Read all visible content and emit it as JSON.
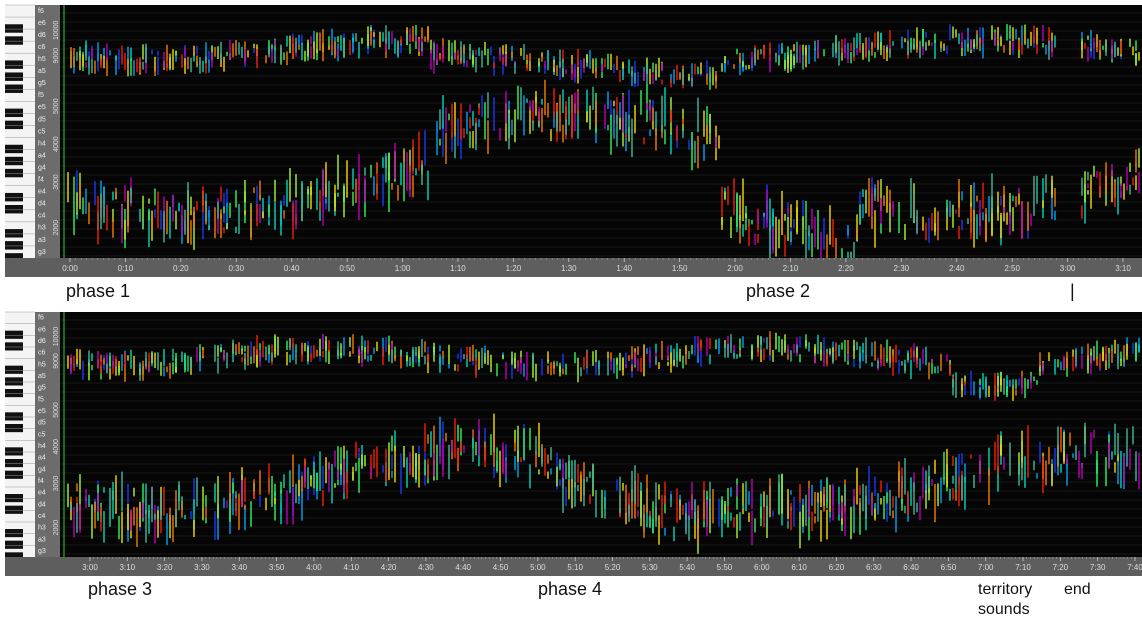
{
  "panels": [
    {
      "notes": [
        "f6",
        "e6",
        "d6",
        "c6",
        "h5",
        "a5",
        "g5",
        "f5",
        "e5",
        "d5",
        "c5",
        "h4",
        "a4",
        "g4",
        "f4",
        "e4",
        "d4",
        "c4",
        "h3",
        "a3",
        "g3"
      ],
      "freq_labels": [
        "10000",
        "9000",
        "5000",
        "4000",
        "3000",
        "2000"
      ],
      "time_ticks": [
        "0:00",
        "0:10",
        "0:20",
        "0:30",
        "0:40",
        "0:50",
        "1:00",
        "1:10",
        "1:20",
        "1:30",
        "1:40",
        "1:50",
        "2:00",
        "2:10",
        "2:20",
        "2:30",
        "2:40",
        "2:50",
        "3:00",
        "3:10"
      ],
      "annotations": [
        "phase 1",
        "phase 2",
        "|"
      ]
    },
    {
      "notes": [
        "f6",
        "e6",
        "d6",
        "c6",
        "h5",
        "a5",
        "g5",
        "f5",
        "e5",
        "d5",
        "c5",
        "h4",
        "a4",
        "g4",
        "f4",
        "e4",
        "d4",
        "c4",
        "h3",
        "a3",
        "g3"
      ],
      "freq_labels": [
        "10000",
        "9000",
        "5000",
        "4000",
        "3000",
        "2000"
      ],
      "time_ticks": [
        "3:00",
        "3:10",
        "3:20",
        "3:30",
        "3:40",
        "3:50",
        "4:00",
        "4:10",
        "4:20",
        "4:30",
        "4:40",
        "4:50",
        "5:00",
        "5:10",
        "5:20",
        "5:30",
        "5:40",
        "5:50",
        "6:00",
        "6:10",
        "6:20",
        "6:30",
        "6:40",
        "6:50",
        "7:00",
        "7:10",
        "7:20",
        "7:30",
        "7:40"
      ],
      "annotations": [
        "phase 3",
        "phase 4",
        "territory",
        "sounds",
        "end"
      ]
    }
  ]
}
